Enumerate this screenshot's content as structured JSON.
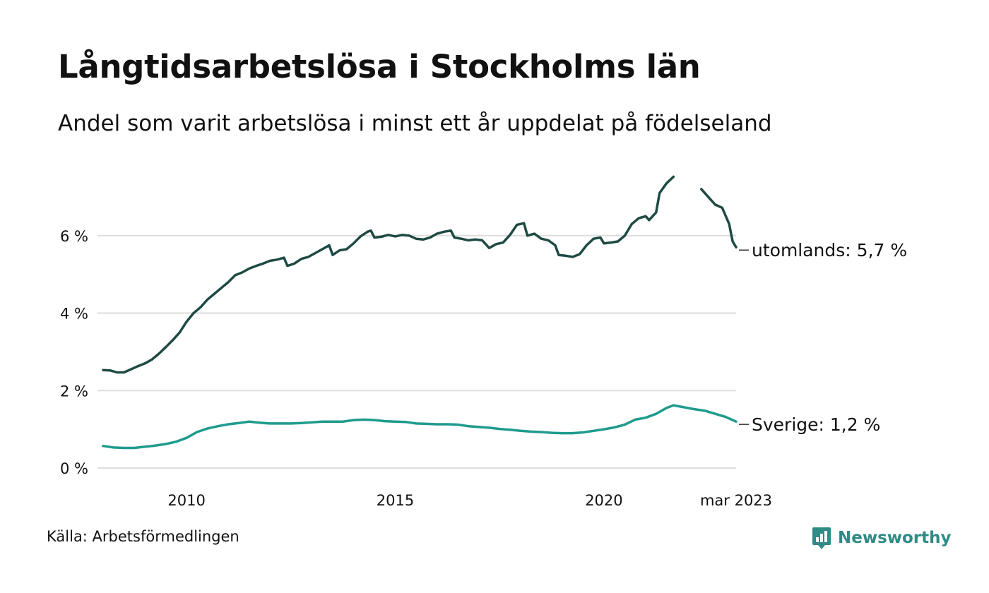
{
  "title": "Långtidsarbetslösa i Stockholms län",
  "subtitle": "Andel som varit arbetslösa i minst ett år uppdelat på födelseland",
  "source": "Källa: Arbetsförmedlingen",
  "brand": {
    "name": "Newsworthy",
    "icon": "newsworthy-bar-chart-logo-icon",
    "color": "#2e8b85"
  },
  "chart_data": {
    "type": "line",
    "x_range": [
      "2008-01",
      "2023-03"
    ],
    "ylim": [
      0,
      7.8
    ],
    "y_ticks": [
      {
        "value": 0,
        "label": "0 %"
      },
      {
        "value": 2,
        "label": "2 %"
      },
      {
        "value": 4,
        "label": "4 %"
      },
      {
        "value": 6,
        "label": "6 %"
      }
    ],
    "x_ticks": [
      {
        "value": "2010-01",
        "label": "2010"
      },
      {
        "value": "2015-01",
        "label": "2015"
      },
      {
        "value": "2020-01",
        "label": "2020"
      },
      {
        "value": "2023-03",
        "label": "mar 2023"
      }
    ],
    "grid": true,
    "legend": "end-labels",
    "series": [
      {
        "name": "utomlands",
        "end_label": "utomlands: 5,7 %",
        "color": "#1f4a44",
        "points": [
          [
            "2008-01",
            2.53
          ],
          [
            "2008-03",
            2.52
          ],
          [
            "2008-05",
            2.47
          ],
          [
            "2008-07",
            2.47
          ],
          [
            "2008-09",
            2.55
          ],
          [
            "2008-11",
            2.63
          ],
          [
            "2009-01",
            2.7
          ],
          [
            "2009-03",
            2.8
          ],
          [
            "2009-05",
            2.95
          ],
          [
            "2009-07",
            3.12
          ],
          [
            "2009-09",
            3.3
          ],
          [
            "2009-11",
            3.5
          ],
          [
            "2010-01",
            3.78
          ],
          [
            "2010-03",
            4.0
          ],
          [
            "2010-05",
            4.15
          ],
          [
            "2010-07",
            4.35
          ],
          [
            "2010-09",
            4.5
          ],
          [
            "2010-11",
            4.65
          ],
          [
            "2011-01",
            4.8
          ],
          [
            "2011-03",
            4.98
          ],
          [
            "2011-05",
            5.05
          ],
          [
            "2011-07",
            5.15
          ],
          [
            "2011-09",
            5.22
          ],
          [
            "2011-11",
            5.28
          ],
          [
            "2012-01",
            5.35
          ],
          [
            "2012-03",
            5.38
          ],
          [
            "2012-05",
            5.43
          ],
          [
            "2012-06",
            5.22
          ],
          [
            "2012-08",
            5.28
          ],
          [
            "2012-10",
            5.4
          ],
          [
            "2012-12",
            5.45
          ],
          [
            "2013-02",
            5.55
          ],
          [
            "2013-04",
            5.65
          ],
          [
            "2013-06",
            5.75
          ],
          [
            "2013-07",
            5.5
          ],
          [
            "2013-09",
            5.62
          ],
          [
            "2013-11",
            5.65
          ],
          [
            "2014-01",
            5.8
          ],
          [
            "2014-03",
            5.98
          ],
          [
            "2014-05",
            6.1
          ],
          [
            "2014-06",
            6.13
          ],
          [
            "2014-07",
            5.95
          ],
          [
            "2014-09",
            5.97
          ],
          [
            "2014-11",
            6.02
          ],
          [
            "2015-01",
            5.98
          ],
          [
            "2015-03",
            6.02
          ],
          [
            "2015-05",
            6.0
          ],
          [
            "2015-07",
            5.92
          ],
          [
            "2015-09",
            5.9
          ],
          [
            "2015-11",
            5.95
          ],
          [
            "2016-01",
            6.05
          ],
          [
            "2016-03",
            6.1
          ],
          [
            "2016-05",
            6.13
          ],
          [
            "2016-06",
            5.95
          ],
          [
            "2016-08",
            5.92
          ],
          [
            "2016-10",
            5.88
          ],
          [
            "2016-12",
            5.9
          ],
          [
            "2017-02",
            5.88
          ],
          [
            "2017-04",
            5.68
          ],
          [
            "2017-06",
            5.78
          ],
          [
            "2017-08",
            5.82
          ],
          [
            "2017-10",
            6.02
          ],
          [
            "2017-12",
            6.28
          ],
          [
            "2018-02",
            6.32
          ],
          [
            "2018-03",
            6.0
          ],
          [
            "2018-05",
            6.05
          ],
          [
            "2018-07",
            5.92
          ],
          [
            "2018-09",
            5.88
          ],
          [
            "2018-11",
            5.75
          ],
          [
            "2018-12",
            5.5
          ],
          [
            "2019-02",
            5.48
          ],
          [
            "2019-04",
            5.45
          ],
          [
            "2019-06",
            5.52
          ],
          [
            "2019-08",
            5.75
          ],
          [
            "2019-10",
            5.92
          ],
          [
            "2019-12",
            5.95
          ],
          [
            "2020-01",
            5.8
          ],
          [
            "2020-03",
            5.82
          ],
          [
            "2020-05",
            5.85
          ],
          [
            "2020-07",
            6.0
          ],
          [
            "2020-09",
            6.3
          ],
          [
            "2020-11",
            6.45
          ],
          [
            "2021-01",
            6.5
          ],
          [
            "2021-02",
            6.4
          ],
          [
            "2021-04",
            6.6
          ],
          [
            "2021-05",
            7.1
          ],
          [
            "2021-07",
            7.35
          ],
          [
            "2021-09",
            7.52
          ],
          null,
          [
            "2022-05",
            7.2
          ],
          [
            "2022-07",
            7.0
          ],
          [
            "2022-09",
            6.8
          ],
          [
            "2022-11",
            6.72
          ],
          [
            "2023-01",
            6.3
          ],
          [
            "2023-02",
            5.85
          ],
          [
            "2023-03",
            5.7
          ]
        ]
      },
      {
        "name": "Sverige",
        "end_label": "Sverige: 1,2 %",
        "color": "#1f9b8e",
        "points": [
          [
            "2008-01",
            0.57
          ],
          [
            "2008-04",
            0.53
          ],
          [
            "2008-07",
            0.52
          ],
          [
            "2008-10",
            0.52
          ],
          [
            "2009-01",
            0.55
          ],
          [
            "2009-04",
            0.58
          ],
          [
            "2009-07",
            0.62
          ],
          [
            "2009-10",
            0.68
          ],
          [
            "2010-01",
            0.78
          ],
          [
            "2010-04",
            0.93
          ],
          [
            "2010-07",
            1.02
          ],
          [
            "2010-10",
            1.08
          ],
          [
            "2011-01",
            1.13
          ],
          [
            "2011-04",
            1.16
          ],
          [
            "2011-07",
            1.2
          ],
          [
            "2011-10",
            1.17
          ],
          [
            "2012-01",
            1.15
          ],
          [
            "2012-04",
            1.15
          ],
          [
            "2012-07",
            1.15
          ],
          [
            "2012-10",
            1.16
          ],
          [
            "2013-01",
            1.18
          ],
          [
            "2013-04",
            1.2
          ],
          [
            "2013-07",
            1.2
          ],
          [
            "2013-10",
            1.2
          ],
          [
            "2014-01",
            1.24
          ],
          [
            "2014-04",
            1.25
          ],
          [
            "2014-07",
            1.24
          ],
          [
            "2014-10",
            1.21
          ],
          [
            "2015-01",
            1.2
          ],
          [
            "2015-04",
            1.19
          ],
          [
            "2015-07",
            1.15
          ],
          [
            "2015-10",
            1.14
          ],
          [
            "2016-01",
            1.13
          ],
          [
            "2016-04",
            1.13
          ],
          [
            "2016-07",
            1.12
          ],
          [
            "2016-10",
            1.08
          ],
          [
            "2017-01",
            1.06
          ],
          [
            "2017-04",
            1.04
          ],
          [
            "2017-07",
            1.01
          ],
          [
            "2017-10",
            0.99
          ],
          [
            "2018-01",
            0.96
          ],
          [
            "2018-04",
            0.94
          ],
          [
            "2018-07",
            0.93
          ],
          [
            "2018-10",
            0.91
          ],
          [
            "2019-01",
            0.9
          ],
          [
            "2019-04",
            0.9
          ],
          [
            "2019-07",
            0.92
          ],
          [
            "2019-10",
            0.96
          ],
          [
            "2020-01",
            1.0
          ],
          [
            "2020-04",
            1.05
          ],
          [
            "2020-07",
            1.12
          ],
          [
            "2020-10",
            1.25
          ],
          [
            "2021-01",
            1.3
          ],
          [
            "2021-04",
            1.4
          ],
          [
            "2021-07",
            1.55
          ],
          [
            "2021-09",
            1.62
          ],
          [
            "2021-12",
            1.57
          ],
          [
            "2022-03",
            1.52
          ],
          [
            "2022-06",
            1.48
          ],
          [
            "2022-09",
            1.4
          ],
          [
            "2022-12",
            1.32
          ],
          [
            "2023-03",
            1.2
          ]
        ]
      }
    ]
  }
}
